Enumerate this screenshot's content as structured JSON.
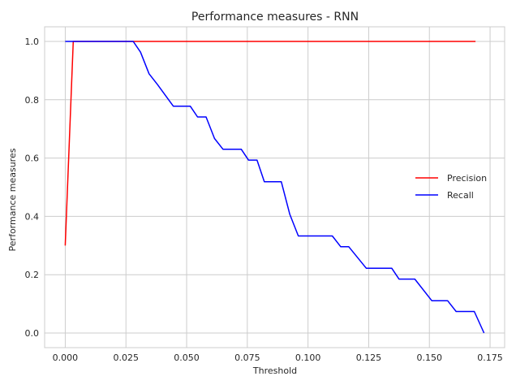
{
  "chart_data": {
    "type": "line",
    "title": "Performance measures - RNN",
    "xlabel": "Threshold",
    "ylabel": "Performance measures",
    "xlim": [
      -0.0085,
      0.181
    ],
    "ylim": [
      -0.05,
      1.05
    ],
    "x_ticks": [
      "0.000",
      "0.025",
      "0.050",
      "0.075",
      "0.100",
      "0.125",
      "0.150",
      "0.175"
    ],
    "y_ticks": [
      "0.0",
      "0.2",
      "0.4",
      "0.6",
      "0.8",
      "1.0"
    ],
    "x_tick_values": [
      0,
      0.025,
      0.05,
      0.075,
      0.1,
      0.125,
      0.15,
      0.175
    ],
    "y_tick_values": [
      0,
      0.2,
      0.4,
      0.6,
      0.8,
      1.0
    ],
    "grid": true,
    "legend_position": "center-right",
    "series": [
      {
        "name": "Precision",
        "color": "#ff0000",
        "points": [
          [
            0,
            0.3
          ],
          [
            0.0033,
            1.0
          ],
          [
            0.169,
            1.0
          ]
        ]
      },
      {
        "name": "Recall",
        "color": "#0000ff",
        "points": [
          [
            0,
            1.0
          ],
          [
            0.028,
            1.0
          ],
          [
            0.031,
            0.963
          ],
          [
            0.0345,
            0.889
          ],
          [
            0.038,
            0.852
          ],
          [
            0.0445,
            0.778
          ],
          [
            0.0515,
            0.778
          ],
          [
            0.0545,
            0.741
          ],
          [
            0.058,
            0.741
          ],
          [
            0.0615,
            0.667
          ],
          [
            0.065,
            0.63
          ],
          [
            0.0725,
            0.63
          ],
          [
            0.0755,
            0.593
          ],
          [
            0.079,
            0.593
          ],
          [
            0.082,
            0.519
          ],
          [
            0.089,
            0.519
          ],
          [
            0.0925,
            0.407
          ],
          [
            0.096,
            0.333
          ],
          [
            0.11,
            0.333
          ],
          [
            0.1135,
            0.296
          ],
          [
            0.1168,
            0.296
          ],
          [
            0.124,
            0.222
          ],
          [
            0.1345,
            0.222
          ],
          [
            0.1375,
            0.185
          ],
          [
            0.144,
            0.185
          ],
          [
            0.151,
            0.111
          ],
          [
            0.1575,
            0.111
          ],
          [
            0.161,
            0.074
          ],
          [
            0.1685,
            0.074
          ],
          [
            0.1725,
            0.0
          ]
        ]
      }
    ]
  }
}
